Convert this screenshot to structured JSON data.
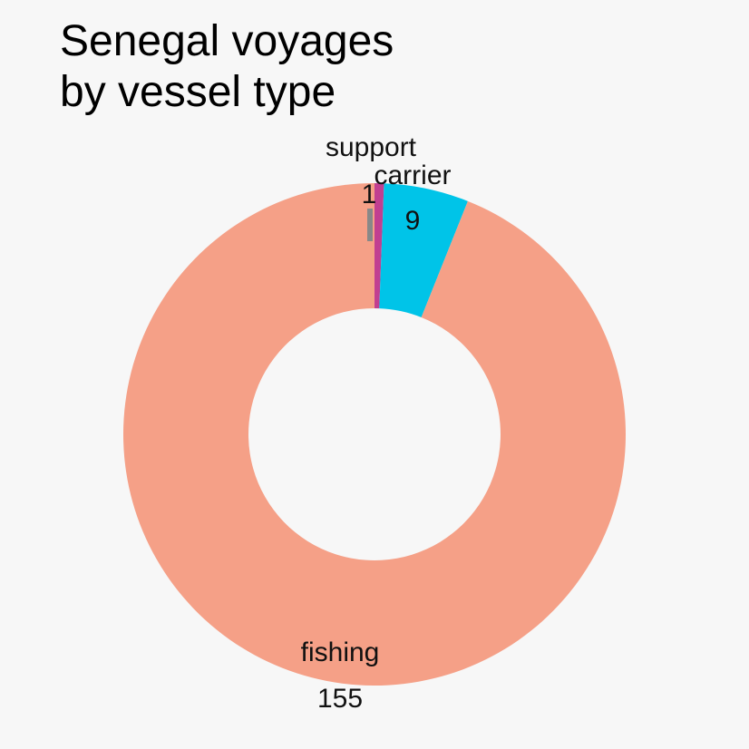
{
  "chart_data": {
    "type": "pie",
    "title": "Senegal voyages\n by vessel type",
    "donut": true,
    "categories": [
      "support",
      "carrier",
      "fishing"
    ],
    "values": [
      1,
      9,
      155
    ],
    "colors": [
      "#c13f91",
      "#00c4e8",
      "#f5a087"
    ],
    "start_angle_deg": 0,
    "direction": "clockwise",
    "legend": "none"
  }
}
